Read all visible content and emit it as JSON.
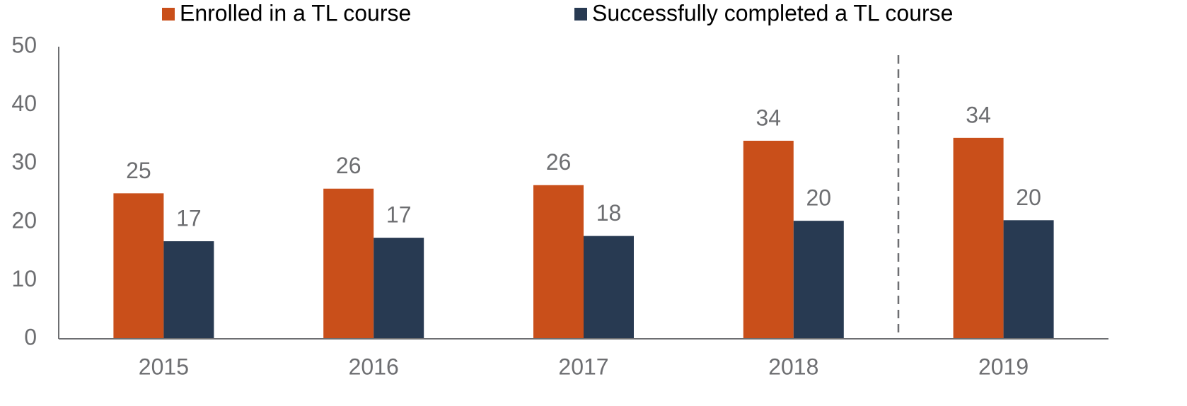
{
  "chart_data": {
    "type": "bar",
    "categories": [
      "2015",
      "2016",
      "2017",
      "2018",
      "2019"
    ],
    "series": [
      {
        "name": "Enrolled in a TL course",
        "color": "#c94f1a",
        "values": [
          24.9,
          25.7,
          26.3,
          33.9,
          34.4
        ],
        "value_labels": [
          "25",
          "26",
          "26",
          "34",
          "34"
        ]
      },
      {
        "name": "Successfully completed a TL course",
        "color": "#283a52",
        "values": [
          16.7,
          17.3,
          17.6,
          20.2,
          20.3
        ],
        "value_labels": [
          "17",
          "17",
          "18",
          "20",
          "20"
        ]
      }
    ],
    "ylim": [
      0,
      50
    ],
    "yticks": [
      0,
      10,
      20,
      30,
      40,
      50
    ],
    "grid": false
  }
}
